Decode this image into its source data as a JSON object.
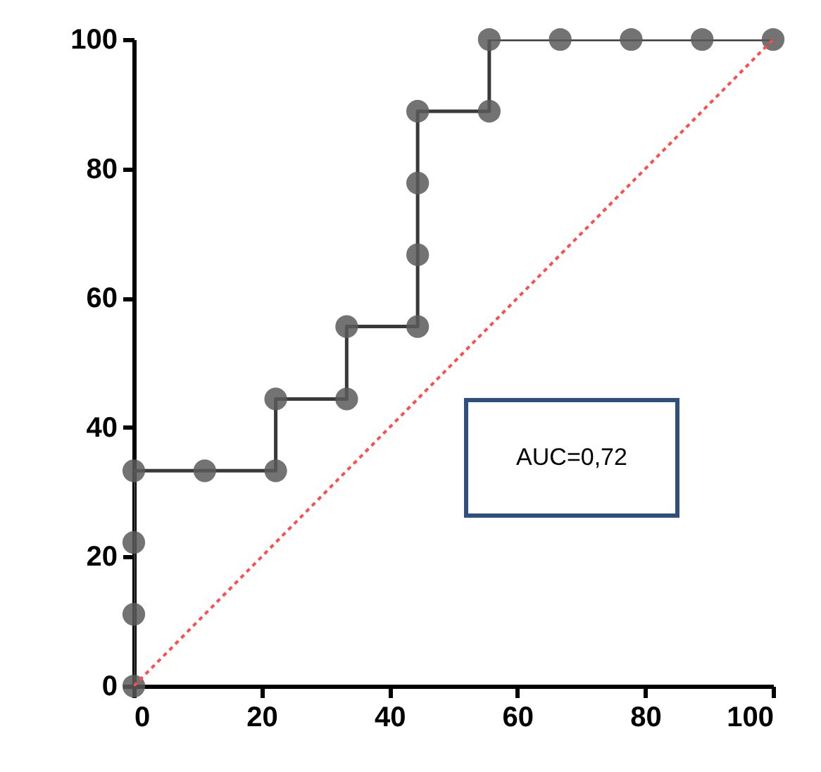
{
  "chart_data": {
    "type": "line",
    "xlim": [
      0,
      100
    ],
    "ylim": [
      0,
      100
    ],
    "xticks": [
      0,
      20,
      40,
      60,
      80,
      100
    ],
    "yticks": [
      0,
      20,
      40,
      60,
      80,
      100
    ],
    "grid": false,
    "series": [
      {
        "color": "#3a3a3a",
        "marker": "circle",
        "line_style": "solid",
        "x": [
          0,
          0,
          0,
          0,
          11.1,
          22.2,
          22.2,
          33.3,
          33.3,
          44.4,
          44.4,
          44.4,
          44.4,
          55.6,
          55.6,
          66.7,
          77.8,
          88.9,
          100
        ],
        "values": [
          0,
          11.1,
          22.2,
          33.3,
          33.3,
          33.3,
          44.4,
          44.4,
          55.6,
          55.6,
          66.7,
          77.8,
          88.9,
          88.9,
          100,
          100,
          100,
          100,
          100
        ]
      },
      {
        "color": "#ff4d4d",
        "marker": "none",
        "line_style": "dotted",
        "x": [
          0,
          100
        ],
        "values": [
          0,
          100
        ]
      }
    ],
    "annotations": [
      "AUC=0,72"
    ]
  }
}
